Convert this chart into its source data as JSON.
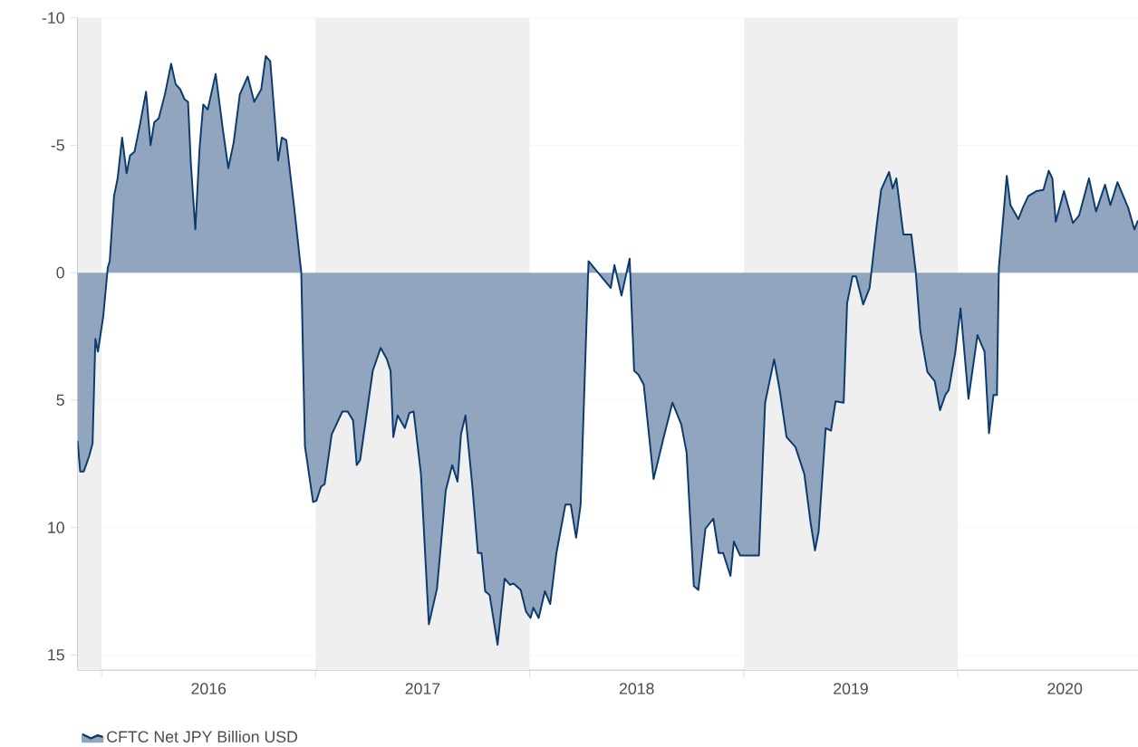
{
  "chart_data": {
    "type": "area",
    "x": [
      2015.888,
      2015.9,
      2015.917,
      2015.942,
      2015.958,
      2015.971,
      2015.983,
      2016.008,
      2016.029,
      2016.038,
      2016.058,
      2016.075,
      2016.096,
      2016.117,
      2016.133,
      2016.154,
      2016.179,
      2016.208,
      2016.229,
      2016.246,
      2016.267,
      2016.296,
      2016.325,
      2016.346,
      2016.367,
      2016.388,
      2016.404,
      2016.417,
      2016.438,
      2016.458,
      2016.475,
      2016.496,
      2016.533,
      2016.567,
      2016.592,
      2016.617,
      2016.646,
      2016.683,
      2016.713,
      2016.746,
      2016.767,
      2016.788,
      2016.825,
      2016.842,
      2016.863,
      2016.9,
      2016.933,
      2016.95,
      2016.988,
      2017.004,
      2017.025,
      2017.042,
      2017.075,
      2017.125,
      2017.15,
      2017.175,
      2017.192,
      2017.208,
      2017.267,
      2017.304,
      2017.333,
      2017.35,
      2017.363,
      2017.383,
      2017.417,
      2017.438,
      2017.458,
      2017.492,
      2017.529,
      2017.567,
      2017.608,
      2017.638,
      2017.663,
      2017.679,
      2017.7,
      2017.733,
      2017.758,
      2017.775,
      2017.792,
      2017.813,
      2017.85,
      2017.883,
      2017.908,
      2017.925,
      2017.958,
      2017.983,
      2018.004,
      2018.017,
      2018.042,
      2018.071,
      2018.096,
      2018.125,
      2018.167,
      2018.192,
      2018.217,
      2018.238,
      2018.275,
      2018.379,
      2018.396,
      2018.429,
      2018.467,
      2018.488,
      2018.508,
      2018.533,
      2018.579,
      2018.625,
      2018.667,
      2018.708,
      2018.733,
      2018.767,
      2018.788,
      2018.821,
      2018.858,
      2018.883,
      2018.904,
      2018.938,
      2018.954,
      2018.983,
      2019.071,
      2019.1,
      2019.142,
      2019.167,
      2019.2,
      2019.242,
      2019.283,
      2019.313,
      2019.333,
      2019.35,
      2019.383,
      2019.408,
      2019.429,
      2019.467,
      2019.483,
      2019.508,
      2019.525,
      2019.558,
      2019.588,
      2019.621,
      2019.642,
      2019.679,
      2019.696,
      2019.713,
      2019.746,
      2019.783,
      2019.804,
      2019.825,
      2019.858,
      2019.892,
      2019.917,
      2019.942,
      2019.958,
      2019.988,
      2020.013,
      2020.05,
      2020.092,
      2020.125,
      2020.146,
      2020.167,
      2020.183,
      2020.192,
      2020.229,
      2020.246,
      2020.283,
      2020.304,
      2020.329,
      2020.367,
      2020.4,
      2020.425,
      2020.442,
      2020.458,
      2020.496,
      2020.538,
      2020.567,
      2020.613,
      2020.646,
      2020.688,
      2020.713,
      2020.746,
      2020.796,
      2020.825,
      2020.842
    ],
    "series": [
      {
        "name": "CFTC Net JPY Billion USD",
        "color": "#0b3a6e",
        "values": [
          6.6,
          7.8,
          7.8,
          7.2,
          6.7,
          2.6,
          3.1,
          1.7,
          -0.2,
          -0.45,
          -3.0,
          -3.7,
          -5.3,
          -3.9,
          -4.6,
          -4.75,
          -5.8,
          -7.1,
          -5.0,
          -5.9,
          -6.05,
          -7.0,
          -8.2,
          -7.4,
          -7.2,
          -6.8,
          -6.7,
          -4.3,
          -1.7,
          -4.9,
          -6.6,
          -6.4,
          -7.8,
          -5.6,
          -4.1,
          -5.1,
          -7.0,
          -7.7,
          -6.7,
          -7.2,
          -8.5,
          -8.3,
          -4.4,
          -5.3,
          -5.2,
          -2.55,
          0.0,
          6.8,
          9.0,
          8.95,
          8.4,
          8.3,
          6.35,
          5.45,
          5.45,
          5.8,
          7.55,
          7.35,
          3.85,
          2.95,
          3.4,
          3.85,
          6.45,
          5.6,
          6.1,
          5.5,
          5.45,
          7.9,
          13.8,
          12.4,
          8.55,
          7.55,
          8.2,
          6.35,
          5.6,
          8.45,
          11.0,
          11.0,
          12.5,
          12.65,
          14.6,
          12.0,
          12.25,
          12.2,
          12.45,
          13.3,
          13.55,
          13.15,
          13.55,
          12.5,
          13.0,
          11.0,
          9.1,
          9.1,
          10.4,
          9.1,
          -0.45,
          0.6,
          -0.3,
          0.9,
          -0.55,
          3.85,
          4.0,
          4.4,
          8.1,
          6.5,
          5.1,
          5.95,
          7.05,
          12.3,
          12.45,
          10.05,
          9.65,
          11.0,
          11.0,
          11.9,
          10.55,
          11.1,
          11.1,
          5.1,
          3.4,
          4.55,
          6.45,
          6.85,
          7.9,
          9.85,
          10.9,
          10.15,
          6.1,
          6.2,
          5.05,
          5.1,
          1.2,
          0.15,
          0.15,
          1.25,
          0.6,
          -1.85,
          -3.25,
          -3.95,
          -3.3,
          -3.7,
          -1.5,
          -1.5,
          0.0,
          2.3,
          3.9,
          4.25,
          5.4,
          4.8,
          4.6,
          3.15,
          1.4,
          4.95,
          2.45,
          3.1,
          6.3,
          4.8,
          4.8,
          -0.2,
          -3.8,
          -2.65,
          -2.1,
          -2.55,
          -3.0,
          -3.2,
          -3.25,
          -4.0,
          -3.7,
          -2.0,
          -3.2,
          -1.95,
          -2.25,
          -3.7,
          -2.4,
          -3.45,
          -2.65,
          -3.55,
          -2.55,
          -1.7,
          -2.05
        ]
      }
    ],
    "xlim": [
      2015.888,
      2020.842
    ],
    "xticks": [
      {
        "value": 2016,
        "label": null
      },
      {
        "value": 2016.5,
        "label": "2016"
      },
      {
        "value": 2017,
        "label": null
      },
      {
        "value": 2017.5,
        "label": "2017"
      },
      {
        "value": 2018,
        "label": null
      },
      {
        "value": 2018.5,
        "label": "2018"
      },
      {
        "value": 2019,
        "label": null
      },
      {
        "value": 2019.5,
        "label": "2019"
      },
      {
        "value": 2020,
        "label": null
      },
      {
        "value": 2020.5,
        "label": "2020"
      }
    ],
    "ylim": [
      15.6,
      -10
    ],
    "yticks": [
      -10,
      -5,
      0,
      5,
      10,
      15
    ],
    "bands": [
      {
        "axis": "x",
        "from": 2015.888,
        "to": 2016,
        "color": "#efefef"
      },
      {
        "axis": "x",
        "from": 2017,
        "to": 2018,
        "color": "#efefef"
      },
      {
        "axis": "x",
        "from": 2019,
        "to": 2020,
        "color": "#efefef"
      }
    ],
    "grid": "y",
    "legend": "bottom"
  }
}
